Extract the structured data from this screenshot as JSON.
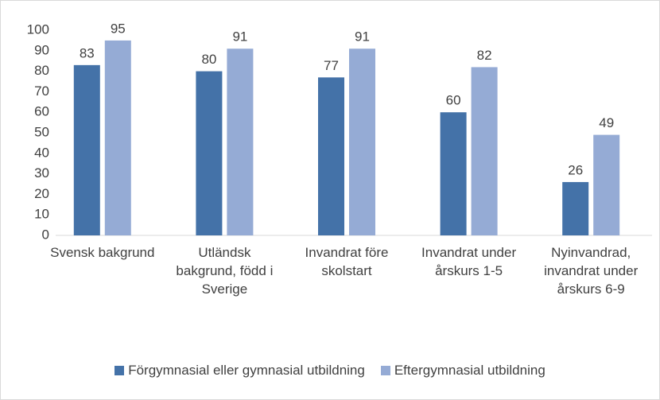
{
  "chart_data": {
    "type": "bar",
    "categories": [
      "Svensk bakgrund",
      "Utländsk bakgrund, född i Sverige",
      "Invandrat före skolstart",
      "Invandrat under årskurs 1-5",
      "Nyinvandrad, invandrat under årskurs 6-9"
    ],
    "series": [
      {
        "name": "Förgymnasial eller gymnasial utbildning",
        "color": "#4472a8",
        "values": [
          83,
          80,
          77,
          60,
          26
        ]
      },
      {
        "name": "Eftergymnasial utbildning",
        "color": "#95abd5",
        "values": [
          95,
          91,
          91,
          82,
          49
        ]
      }
    ],
    "ylim": [
      0,
      100
    ],
    "yticks": [
      0,
      10,
      20,
      30,
      40,
      50,
      60,
      70,
      80,
      90,
      100
    ],
    "grid": false
  }
}
